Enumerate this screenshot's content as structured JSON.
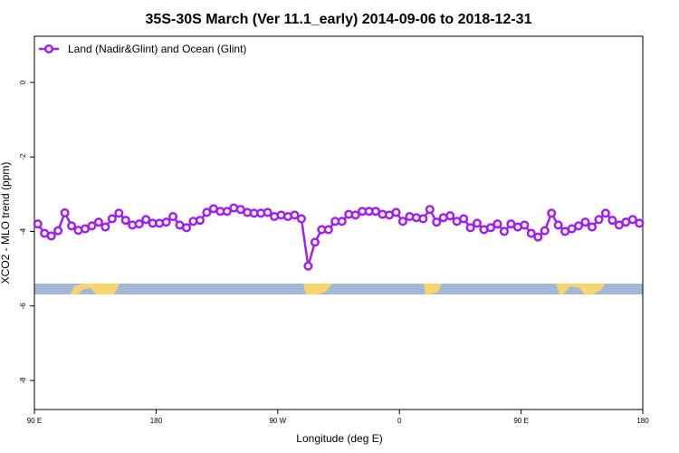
{
  "chart_data": {
    "type": "line",
    "title": "35S-30S March (Ver 11.1_early)   2014-09-06 to 2018-12-31",
    "x_label": "Longitude (deg E)",
    "y_label": "XCO2 - MLO trend (ppm)",
    "legend": "top-left",
    "xlim": [
      90,
      540
    ],
    "xticks": [
      {
        "value": 90,
        "label": "90 E"
      },
      180,
      {
        "value": 270,
        "label": "90 W"
      },
      0,
      {
        "value": 450,
        "label": "90 E"
      },
      {
        "value": 540,
        "label": "180"
      }
    ],
    "ylim": [
      -8.78,
      1.24
    ],
    "yticks": [
      0,
      -2,
      -4,
      -6,
      -8
    ],
    "x": [
      92.5,
      97.5,
      102.5,
      107.5,
      112.5,
      117.5,
      122.5,
      127.5,
      132.5,
      137.5,
      142.5,
      147.5,
      152.5,
      157.5,
      162.5,
      167.5,
      172.5,
      177.5,
      182.5,
      187.5,
      192.5,
      197.5,
      202.5,
      207.5,
      212.5,
      217.5,
      222.5,
      227.5,
      232.5,
      237.5,
      242.5,
      247.5,
      252.5,
      257.5,
      262.5,
      267.5,
      272.5,
      277.5,
      282.5,
      287.5,
      292.5,
      297.5,
      302.5,
      307.5,
      312.5,
      317.5,
      322.5,
      327.5,
      332.5,
      337.5,
      342.5,
      347.5,
      352.5,
      357.5,
      362.5,
      367.5,
      372.5,
      377.5,
      382.5,
      387.5,
      392.5,
      397.5,
      402.5,
      407.5,
      412.5,
      417.5,
      422.5,
      427.5,
      432.5,
      437.5,
      442.5,
      447.5,
      452.5,
      457.5,
      462.5,
      467.5,
      472.5,
      477.5,
      482.5,
      487.5,
      492.5,
      497.5,
      502.5,
      507.5,
      512.5,
      517.5,
      522.5,
      527.5,
      532.5,
      537.5
    ],
    "series": [
      {
        "name": "Land (Nadir&Glint) and Ocean (Glint)",
        "color": "#a020f0",
        "values": [
          -3.8,
          -4.05,
          -4.12,
          -3.98,
          -3.5,
          -3.85,
          -3.97,
          -3.93,
          -3.85,
          -3.75,
          -3.88,
          -3.66,
          -3.51,
          -3.7,
          -3.83,
          -3.8,
          -3.68,
          -3.78,
          -3.78,
          -3.75,
          -3.6,
          -3.83,
          -3.9,
          -3.73,
          -3.7,
          -3.49,
          -3.39,
          -3.46,
          -3.46,
          -3.37,
          -3.41,
          -3.49,
          -3.51,
          -3.51,
          -3.49,
          -3.6,
          -3.56,
          -3.6,
          -3.56,
          -3.66,
          -4.93,
          -4.29,
          -3.95,
          -3.95,
          -3.73,
          -3.73,
          -3.54,
          -3.56,
          -3.46,
          -3.46,
          -3.46,
          -3.54,
          -3.56,
          -3.49,
          -3.73,
          -3.6,
          -3.63,
          -3.66,
          -3.41,
          -3.75,
          -3.63,
          -3.58,
          -3.73,
          -3.66,
          -3.9,
          -3.78,
          -3.95,
          -3.9,
          -3.8,
          -4.0,
          -3.8,
          -3.88,
          -3.83,
          -4.05,
          -4.15,
          -3.98,
          -3.51,
          -3.83,
          -4.0,
          -3.93,
          -3.85,
          -3.75,
          -3.88,
          -3.68,
          -3.51,
          -3.7,
          -3.83,
          -3.75,
          -3.68,
          -3.78
        ]
      }
    ]
  }
}
